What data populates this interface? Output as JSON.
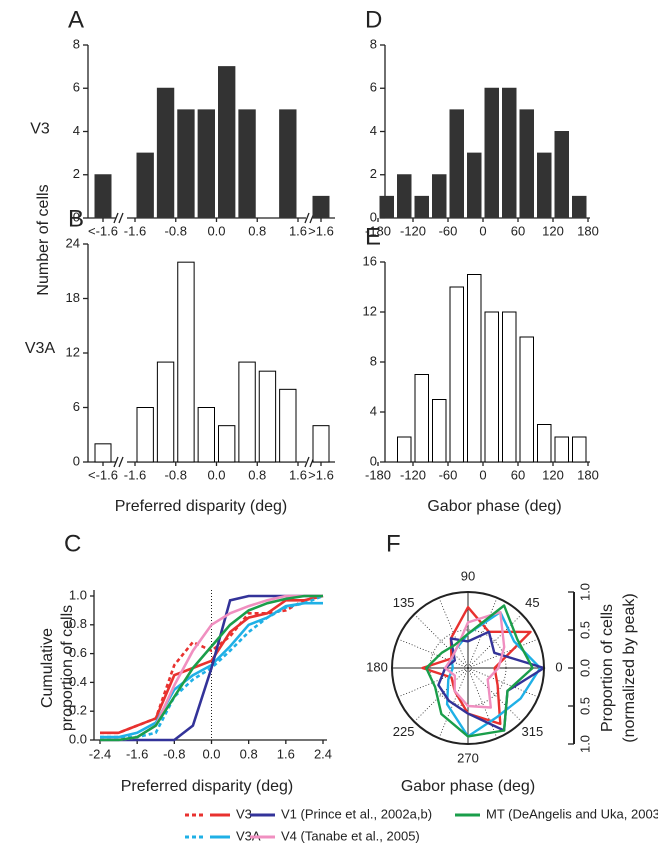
{
  "chart_data": [
    {
      "type": "histogram",
      "panel": "A",
      "row_label": "V3",
      "ylabel": "Number of cells",
      "bins": [
        -1.6,
        -1.2,
        -0.8,
        -0.4,
        0,
        0.4,
        0.8,
        1.2,
        1.6
      ],
      "values": [
        3,
        6,
        5,
        5,
        7,
        5,
        0,
        5
      ],
      "underflow": {
        "label": "<-1.6",
        "value": 2
      },
      "overflow": {
        "label": ">1.6",
        "value": 1
      },
      "xlim": [
        -1.6,
        1.6
      ],
      "xticks": [
        -1.6,
        -0.8,
        {
          "value": 0,
          "label": "0.0"
        },
        0.8,
        1.6
      ],
      "ylim": [
        0,
        8
      ],
      "yticks": [
        0,
        2,
        4,
        6,
        8
      ],
      "color": "#333333",
      "edgecolor": "#333333"
    },
    {
      "type": "histogram",
      "panel": "B",
      "row_label": "V3A",
      "xlabel": "Preferred disparity (deg)",
      "bins": [
        -1.6,
        -1.2,
        -0.8,
        -0.4,
        0,
        0.4,
        0.8,
        1.2,
        1.6
      ],
      "values": [
        6,
        11,
        22,
        6,
        4,
        11,
        10,
        8
      ],
      "underflow": {
        "label": "<-1.6",
        "value": 2
      },
      "overflow": {
        "label": ">1.6",
        "value": 4
      },
      "xlim": [
        -1.6,
        1.6
      ],
      "xticks": [
        -1.6,
        -0.8,
        {
          "value": 0,
          "label": "0.0"
        },
        0.8,
        1.6
      ],
      "ylim": [
        0,
        24
      ],
      "yticks": [
        0,
        6,
        12,
        18,
        24
      ],
      "color": "#ffffff",
      "edgecolor": "#000000"
    },
    {
      "type": "histogram",
      "panel": "D",
      "bins": [
        -180,
        -150,
        -120,
        -90,
        -60,
        -30,
        0,
        30,
        60,
        90,
        120,
        150,
        180
      ],
      "values": [
        1,
        2,
        1,
        2,
        5,
        3,
        6,
        6,
        5,
        3,
        4,
        1
      ],
      "xlim": [
        -180,
        180
      ],
      "xticks": [
        -180,
        -120,
        -60,
        0,
        60,
        120,
        180
      ],
      "ylim": [
        0,
        8
      ],
      "yticks": [
        0,
        2,
        4,
        6,
        8
      ],
      "color": "#333333",
      "edgecolor": "#333333"
    },
    {
      "type": "histogram",
      "panel": "E",
      "xlabel": "Gabor phase (deg)",
      "bins": [
        -180,
        -150,
        -120,
        -90,
        -60,
        -30,
        0,
        30,
        60,
        90,
        120,
        150,
        180
      ],
      "values": [
        0,
        2,
        7,
        5,
        14,
        15,
        12,
        12,
        10,
        3,
        2,
        2
      ],
      "xlim": [
        -180,
        180
      ],
      "xticks": [
        -180,
        -120,
        -60,
        0,
        60,
        120,
        180
      ],
      "ylim": [
        0,
        16
      ],
      "yticks": [
        0,
        4,
        8,
        12,
        16
      ],
      "color": "#ffffff",
      "edgecolor": "#000000"
    },
    {
      "type": "line",
      "panel": "C",
      "ylabel": [
        "Cumulative",
        "proportion of cells"
      ],
      "xlabel": "Preferred disparity (deg)",
      "x": [
        -2.4,
        -2.0,
        -1.6,
        -1.2,
        -0.8,
        -0.4,
        0,
        0.4,
        0.8,
        1.2,
        1.6,
        2.0,
        2.4
      ],
      "series": [
        {
          "name": "V3",
          "color": "#e8312f",
          "values": [
            0.05,
            0.05,
            0.1,
            0.15,
            0.45,
            0.5,
            0.55,
            0.75,
            0.85,
            0.88,
            0.97,
            0.97,
            1.0
          ],
          "dashed_values": [
            0.05,
            0.05,
            0.1,
            0.15,
            0.52,
            0.68,
            0.62,
            0.72,
            0.88,
            0.88,
            0.9,
            0.97,
            1.0
          ]
        },
        {
          "name": "V3A",
          "color": "#1fb0e6",
          "values": [
            0.02,
            0.02,
            0.05,
            0.12,
            0.35,
            0.45,
            0.52,
            0.65,
            0.8,
            0.85,
            0.93,
            0.95,
            0.95
          ],
          "dashed_values": [
            0.02,
            0.02,
            0.02,
            0.05,
            0.3,
            0.42,
            0.5,
            0.62,
            0.75,
            0.85,
            0.92,
            0.95,
            1.0
          ]
        },
        {
          "name": "V1 (Prince et al., 2002a,b)",
          "color": "#333399",
          "values": [
            0,
            0,
            0,
            0,
            0,
            0.1,
            0.5,
            0.97,
            1,
            1,
            1,
            1,
            1
          ]
        },
        {
          "name": "V4 (Tanabe et al., 2005)",
          "color": "#f08fc0",
          "values": [
            0,
            0,
            0.02,
            0.1,
            0.38,
            0.62,
            0.8,
            0.88,
            0.93,
            0.97,
            1,
            1,
            1
          ]
        },
        {
          "name": "MT (DeAngelis and Uka, 2003)",
          "color": "#1a9e4a",
          "values": [
            0,
            0,
            0.02,
            0.1,
            0.3,
            0.5,
            0.65,
            0.8,
            0.9,
            0.95,
            0.98,
            1,
            1
          ]
        }
      ],
      "xlim": [
        -2.4,
        2.4
      ],
      "xticks": [
        -2.4,
        -1.6,
        -0.8,
        {
          "value": 0,
          "label": "0.0"
        },
        0.8,
        1.6,
        2.4
      ],
      "ylim": [
        0,
        1
      ],
      "yticks": [
        {
          "value": 0,
          "label": "0.0"
        },
        0.2,
        0.4,
        0.6,
        0.8,
        {
          "value": 1,
          "label": "1.0"
        }
      ]
    },
    {
      "type": "polar",
      "panel": "F",
      "xlabel": "Gabor phase (deg)",
      "rlabel": [
        "Proportion of cells",
        "(normalized by peak)"
      ],
      "theta": [
        0,
        30,
        60,
        90,
        120,
        150,
        180,
        210,
        240,
        270,
        300,
        330
      ],
      "series": [
        {
          "color": "#e8312f",
          "values": [
            0.35,
            0.95,
            0.55,
            0.8,
            0.45,
            0.25,
            0.6,
            0.25,
            0.35,
            0.6,
            0.85,
            0.45
          ]
        },
        {
          "color": "#1fb0e6",
          "values": [
            0.95,
            0.7,
            0.85,
            0.45,
            0.3,
            0.25,
            0.2,
            0.3,
            0.55,
            0.9,
            0.75,
            0.8
          ]
        },
        {
          "color": "#333399",
          "values": [
            1.0,
            0.4,
            0.55,
            0.35,
            0.45,
            0.2,
            0.3,
            0.45,
            0.5,
            0.6,
            0.95,
            0.6
          ]
        },
        {
          "color": "#f08fc0",
          "values": [
            0.4,
            0.55,
            0.85,
            0.6,
            0.3,
            0.25,
            0.3,
            0.2,
            0.35,
            0.5,
            0.6,
            0.3
          ]
        },
        {
          "color": "#1a9e4a",
          "values": [
            0.85,
            0.75,
            0.95,
            0.45,
            0.35,
            0.4,
            0.55,
            0.5,
            0.7,
            0.9,
            0.95,
            0.6
          ]
        }
      ],
      "thetaticks": [
        0,
        45,
        90,
        135,
        180,
        225,
        270,
        315
      ],
      "rlim": [
        0,
        1
      ],
      "rticks": [
        {
          "value": 0,
          "label": "0.0"
        },
        0.5,
        {
          "value": 1,
          "label": "1.0"
        }
      ]
    }
  ]
}
